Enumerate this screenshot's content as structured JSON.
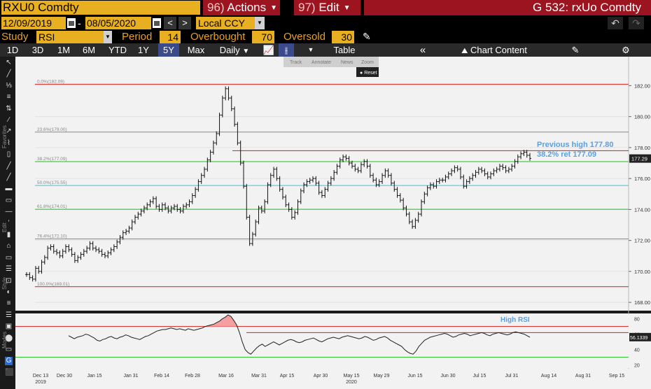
{
  "title_bar": {
    "ticker": "RXU0 Comdty",
    "actions_num": "96)",
    "actions_label": "Actions",
    "edit_num": "97)",
    "edit_label": "Edit",
    "window_title": "G 532: rxUo Comdty"
  },
  "date_range": {
    "start": "12/09/2019",
    "separator": "-",
    "end": "08/05/2020",
    "currency": "Local CCY"
  },
  "study": {
    "study_label": "Study",
    "study_value": "RSI",
    "period_label": "Period",
    "period_value": "14",
    "overbought_label": "Overbought",
    "overbought_value": "70",
    "oversold_label": "Oversold",
    "oversold_value": "30"
  },
  "toolbar": {
    "ranges": [
      "1D",
      "3D",
      "1M",
      "6M",
      "YTD",
      "1Y",
      "5Y",
      "Max"
    ],
    "selected_range": "5Y",
    "frequency": "Daily",
    "table_label": "Table",
    "chart_content_label": "Chart Content"
  },
  "left_tools": {
    "favorites_label": "Favorites",
    "edit_label": "Edit",
    "style_label": "Style",
    "modes_label": "Modes"
  },
  "annotation_toolbar": {
    "track": "Track",
    "annotate": "Annotate",
    "news": "News",
    "zoom": "Zoom",
    "reset": "Reset"
  },
  "colors": {
    "background": "#000000",
    "chart_bg": "#f2f2f2",
    "bloomberg_amber": "#e8b020",
    "bloomberg_red": "#9c1420",
    "price_bar": "#111111",
    "fib_red": "#d02020",
    "fib_green": "#20c020",
    "fib_cyan": "#40c0e0",
    "fib_gray": "#888888",
    "annotation_blue": "#5aa0e0"
  },
  "chart_data": {
    "type": "ohlc",
    "ylim": [
      167.6,
      183.6
    ],
    "yticks": [
      "182.00",
      "180.00",
      "178.00",
      "176.00",
      "174.00",
      "172.00",
      "170.00",
      "168.00"
    ],
    "last_price": "177.29",
    "x_labels": [
      "Dec 13",
      "Dec 30",
      "Jan 15",
      "Jan 31",
      "Feb 14",
      "Feb 28",
      "Mar 16",
      "Mar 31",
      "Apr 15",
      "Apr 30",
      "May 15",
      "May 29",
      "Jun 15",
      "Jun 30",
      "Jul 15",
      "Jul 31",
      "Aug 14",
      "Aug 31",
      "Sep 15"
    ],
    "x_year_labels": [
      {
        "label": "2019",
        "under": "Dec 13"
      },
      {
        "label": "2020",
        "under": "May 15"
      }
    ],
    "fib_levels": [
      {
        "label": "0.0%(182.09)",
        "value": 182.09,
        "color": "red"
      },
      {
        "label": "23.6%(179.00)",
        "value": 179.0,
        "color": "gray"
      },
      {
        "label": "38.2%(177.09)",
        "value": 177.09,
        "color": "green"
      },
      {
        "label": "50.0%(175.55)",
        "value": 175.55,
        "color": "cyan"
      },
      {
        "label": "61.8%(174.01)",
        "value": 174.01,
        "color": "green"
      },
      {
        "label": "76.4%(172.10)",
        "value": 172.1,
        "color": "gray"
      },
      {
        "label": "100.0%(169.01)",
        "value": 169.01,
        "color": "red"
      }
    ],
    "previous_high_line": 177.8,
    "annotations": [
      "Previous high 177.80",
      "38.2% ret 177.09"
    ],
    "price_series": [
      169.8,
      169.6,
      169.5,
      170.2,
      170.0,
      170.6,
      170.9,
      171.5,
      171.6,
      171.3,
      171.2,
      171.0,
      171.3,
      171.6,
      171.4,
      171.1,
      170.7,
      170.9,
      171.1,
      171.3,
      171.5,
      171.8,
      171.5,
      171.4,
      171.3,
      171.1,
      171.0,
      171.2,
      171.4,
      171.6,
      171.9,
      172.2,
      172.5,
      172.6,
      172.8,
      173.2,
      173.5,
      173.7,
      173.9,
      174.1,
      174.3,
      174.5,
      174.7,
      174.2,
      174.0,
      174.3,
      174.1,
      173.9,
      174.1,
      174.2,
      174.0,
      173.9,
      174.2,
      174.3,
      174.5,
      174.9,
      175.3,
      175.8,
      176.2,
      176.6,
      177.2,
      177.7,
      178.3,
      178.9,
      180.1,
      181.2,
      181.8,
      181.2,
      180.5,
      179.5,
      178.3,
      177.0,
      175.5,
      173.5,
      171.8,
      172.4,
      173.2,
      174.1,
      173.9,
      174.5,
      175.6,
      176.2,
      176.6,
      176.0,
      175.3,
      174.8,
      174.3,
      174.0,
      173.5,
      173.8,
      174.5,
      175.2,
      175.6,
      175.8,
      175.9,
      176.0,
      175.7,
      175.1,
      174.9,
      175.3,
      175.7,
      176.0,
      176.4,
      176.8,
      177.2,
      177.4,
      177.3,
      177.0,
      176.8,
      176.6,
      176.5,
      176.9,
      177.1,
      176.8,
      176.2,
      175.9,
      175.6,
      175.8,
      176.2,
      176.5,
      176.2,
      175.7,
      175.3,
      174.9,
      174.6,
      174.1,
      173.7,
      173.2,
      172.9,
      173.3,
      173.7,
      174.5,
      175.0,
      175.4,
      175.6,
      175.5,
      175.8,
      175.9,
      175.9,
      176.1,
      176.3,
      176.5,
      176.7,
      176.6,
      176.1,
      175.5,
      175.8,
      176.0,
      176.2,
      176.4,
      176.6,
      176.5,
      176.3,
      176.1,
      176.3,
      176.5,
      176.6,
      176.8,
      176.7,
      176.5,
      176.6,
      176.8,
      177.1,
      177.4,
      177.6,
      177.7,
      177.5,
      177.3
    ],
    "rsi": {
      "ylim": [
        16,
        86
      ],
      "yticks": [
        "80",
        "60",
        "40",
        "20"
      ],
      "last_value": "56.1339",
      "overbought": 70,
      "oversold": 30,
      "high_rsi_label": "High RSI",
      "values": [
        58,
        56,
        54,
        56,
        57,
        58,
        60,
        59,
        57,
        55,
        52,
        51,
        53,
        54,
        56,
        57,
        55,
        54,
        56,
        57,
        59,
        58,
        56,
        55,
        54,
        53,
        55,
        57,
        58,
        60,
        62,
        64,
        65,
        66,
        66,
        67,
        68,
        67,
        66,
        67,
        66,
        65,
        67,
        66,
        65,
        66,
        67,
        68,
        70,
        71,
        72,
        73,
        75,
        77,
        80,
        82,
        85,
        83,
        78,
        72,
        62,
        50,
        40,
        36,
        34,
        38,
        42,
        45,
        47,
        44,
        46,
        48,
        50,
        48,
        46,
        48,
        50,
        52,
        53,
        52,
        50,
        49,
        50,
        52,
        53,
        54,
        55,
        53,
        51,
        50,
        52,
        54,
        55,
        56,
        55,
        54,
        56,
        57,
        58,
        57,
        56,
        55,
        54,
        55,
        57,
        56,
        54,
        52,
        53,
        55,
        56,
        57,
        55,
        52,
        50,
        48,
        46,
        44,
        40,
        37,
        35,
        34,
        38,
        44,
        48,
        52,
        54,
        56,
        57,
        58,
        59,
        60,
        61,
        60,
        58,
        56,
        57,
        59,
        60,
        61,
        60,
        58,
        59,
        60,
        61,
        62,
        61,
        59,
        58,
        60,
        61,
        62,
        61,
        60,
        59,
        60,
        62,
        63,
        62,
        61,
        60,
        58,
        56
      ]
    }
  }
}
